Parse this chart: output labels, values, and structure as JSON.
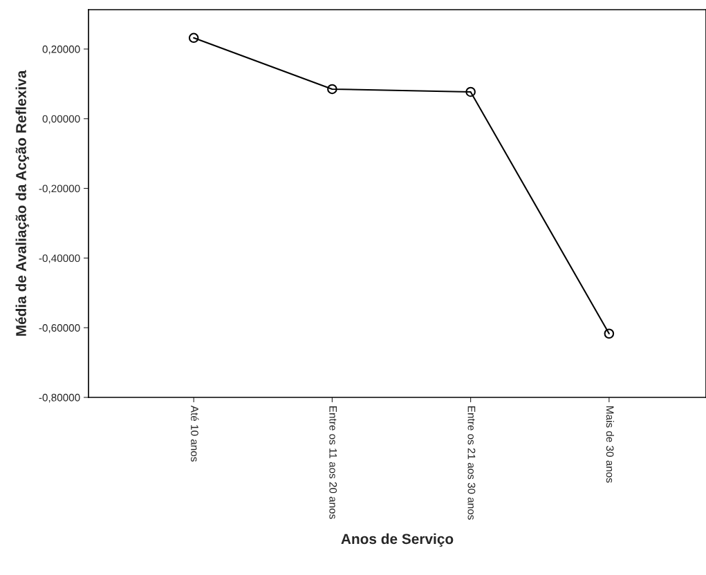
{
  "chart_data": {
    "type": "line",
    "xlabel": "Anos de Serviço",
    "ylabel": "Média de Avaliação da Acção Reflexiva",
    "categories": [
      "Até 10 anos",
      "Entre os 11 aos 20 anos",
      "Entre os 21 aos 30 anos",
      "Mais de 30 anos"
    ],
    "series": [
      {
        "color": "#000000",
        "values": [
          0.232,
          0.085,
          0.077,
          -0.617
        ]
      }
    ],
    "ylim": [
      -0.8,
      0.313
    ],
    "yticks": [
      {
        "value": -0.8,
        "label": "-0,80000"
      },
      {
        "value": -0.6,
        "label": "-0,60000"
      },
      {
        "value": -0.4,
        "label": "-0,40000"
      },
      {
        "value": -0.2,
        "label": "-0,20000"
      },
      {
        "value": 0,
        "label": "0,00000"
      },
      {
        "value": 0.2,
        "label": "0,20000"
      }
    ],
    "marker": "circle",
    "line_style": "solid",
    "grid": false,
    "legend": false
  }
}
